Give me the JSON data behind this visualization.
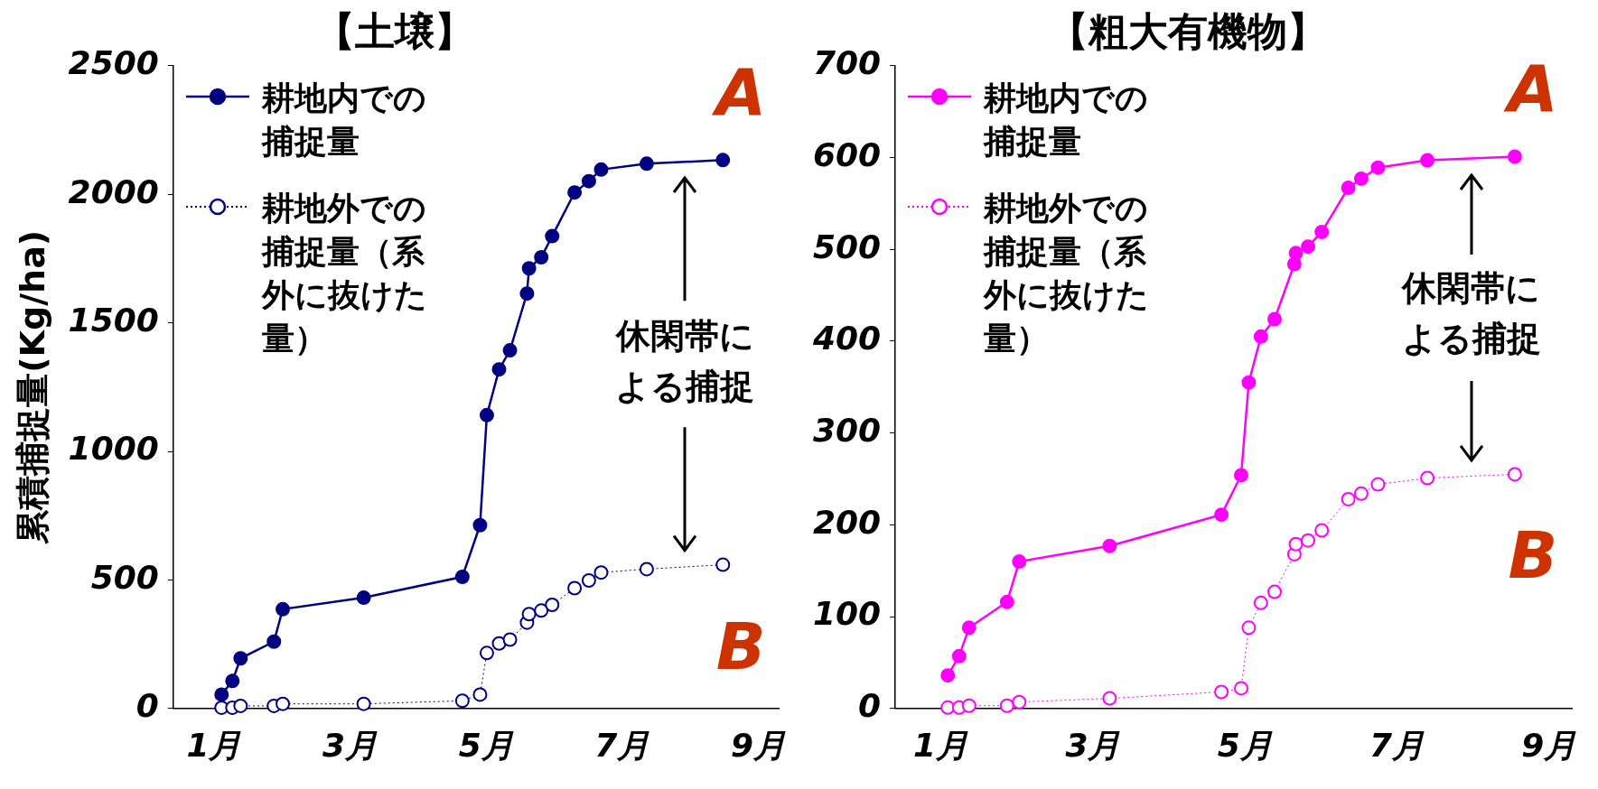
{
  "chart_data": [
    {
      "type": "line",
      "title": "【土壌】",
      "ylabel": "累積捕捉量(Kg/ha)",
      "xlim": [
        0.4,
        9.3
      ],
      "xticks": [
        {
          "value": 1,
          "label": "1月"
        },
        {
          "value": 3,
          "label": "3月"
        },
        {
          "value": 5,
          "label": "5月"
        },
        {
          "value": 7,
          "label": "7月"
        },
        {
          "value": 9,
          "label": "9月"
        }
      ],
      "ylim": [
        0,
        2500
      ],
      "yticks": [
        0,
        500,
        1000,
        1500,
        2000,
        2500
      ],
      "grid": false,
      "legend": "top left",
      "marker": "circle",
      "x": [
        1.11,
        1.27,
        1.39,
        1.88,
        2.01,
        3.2,
        4.65,
        4.91,
        5.01,
        5.19,
        5.35,
        5.6,
        5.63,
        5.81,
        5.97,
        6.3,
        6.51,
        6.69,
        7.36,
        8.48
      ],
      "series": [
        {
          "name": "耕地内での捕捉量",
          "color": "#000080",
          "line_style": "solid",
          "values": [
            54,
            107,
            195,
            260,
            386,
            431,
            512,
            713,
            1141,
            1319,
            1393,
            1614,
            1712,
            1755,
            1837,
            2007,
            2051,
            2096,
            2119,
            2133
          ]
        },
        {
          "name": "耕地外での捕捉量（系外に抜けた量）",
          "color": "#000080",
          "line_style": "dotted",
          "values": [
            3,
            3,
            10,
            10,
            18,
            18,
            30,
            54,
            216,
            253,
            268,
            334,
            367,
            381,
            403,
            468,
            498,
            529,
            542,
            559
          ]
        }
      ],
      "annotations": [
        "A",
        "B",
        "休閑帯による捕捉"
      ]
    },
    {
      "type": "line",
      "title": "【粗大有機物】",
      "xlim": [
        0.4,
        9.3
      ],
      "xticks": [
        {
          "value": 1,
          "label": "1月"
        },
        {
          "value": 3,
          "label": "3月"
        },
        {
          "value": 5,
          "label": "5月"
        },
        {
          "value": 7,
          "label": "7月"
        },
        {
          "value": 9,
          "label": "9月"
        }
      ],
      "ylim": [
        0,
        700
      ],
      "yticks": [
        0,
        100,
        200,
        300,
        400,
        500,
        600,
        700
      ],
      "grid": false,
      "legend": "top left",
      "marker": "circle",
      "x": [
        1.09,
        1.24,
        1.37,
        1.87,
        2.03,
        3.22,
        4.69,
        4.95,
        5.05,
        5.21,
        5.39,
        5.65,
        5.67,
        5.83,
        6.01,
        6.36,
        6.53,
        6.75,
        7.4,
        8.55
      ],
      "series": [
        {
          "name": "耕地内での捕捉量",
          "color": "#ff00ff",
          "line_style": "solid",
          "values": [
            36,
            57,
            88,
            116,
            160,
            177,
            211,
            254,
            355,
            405,
            424,
            484,
            496,
            503,
            519,
            567,
            577,
            589,
            597,
            601
          ]
        },
        {
          "name": "耕地外での捕捉量（系外に抜けた量）",
          "color": "#ff00ff",
          "line_style": "dotted",
          "values": [
            1,
            1,
            3,
            3,
            7,
            11,
            18,
            22,
            88,
            115,
            127,
            168,
            179,
            183,
            194,
            228,
            234,
            244,
            251,
            255
          ]
        }
      ],
      "annotations": [
        "A",
        "B",
        "休閑帯による捕捉"
      ]
    }
  ]
}
